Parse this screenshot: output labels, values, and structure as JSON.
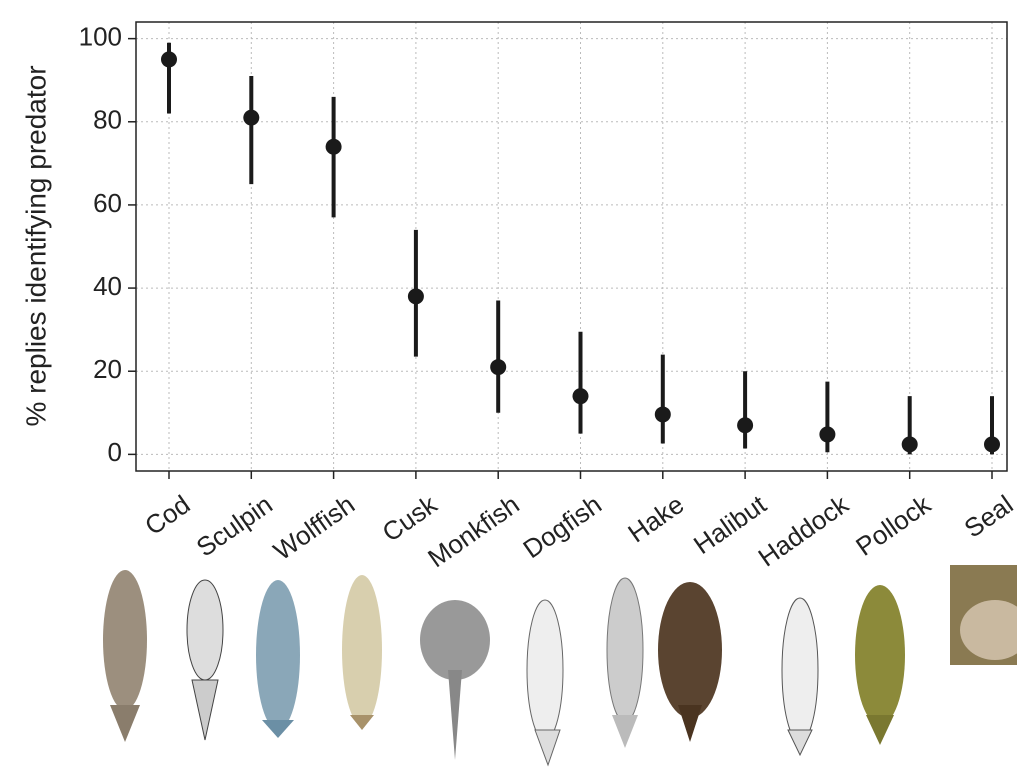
{
  "chart_data": {
    "type": "errorbar",
    "y_label": "% replies identifying predator",
    "categories": [
      "Cod",
      "Sculpin",
      "Wolffish",
      "Cusk",
      "Monkfish",
      "Dogfish",
      "Hake",
      "Halibut",
      "Haddock",
      "Pollock",
      "Seal"
    ],
    "series": [
      {
        "color": "#1a1a1a",
        "values": [
          95,
          81,
          74,
          38,
          21,
          14,
          9.6,
          7,
          4.8,
          2.4,
          2.4
        ],
        "high": [
          99,
          91,
          86,
          54,
          37,
          29.5,
          24,
          20,
          17.5,
          14,
          14
        ],
        "low": [
          82,
          65,
          57,
          23.5,
          10,
          5,
          2.6,
          1.4,
          0.5,
          0,
          0
        ]
      }
    ],
    "ylim": [
      -4,
      104
    ],
    "yticks": [
      0,
      20,
      40,
      60,
      80,
      100
    ],
    "grid": true
  }
}
